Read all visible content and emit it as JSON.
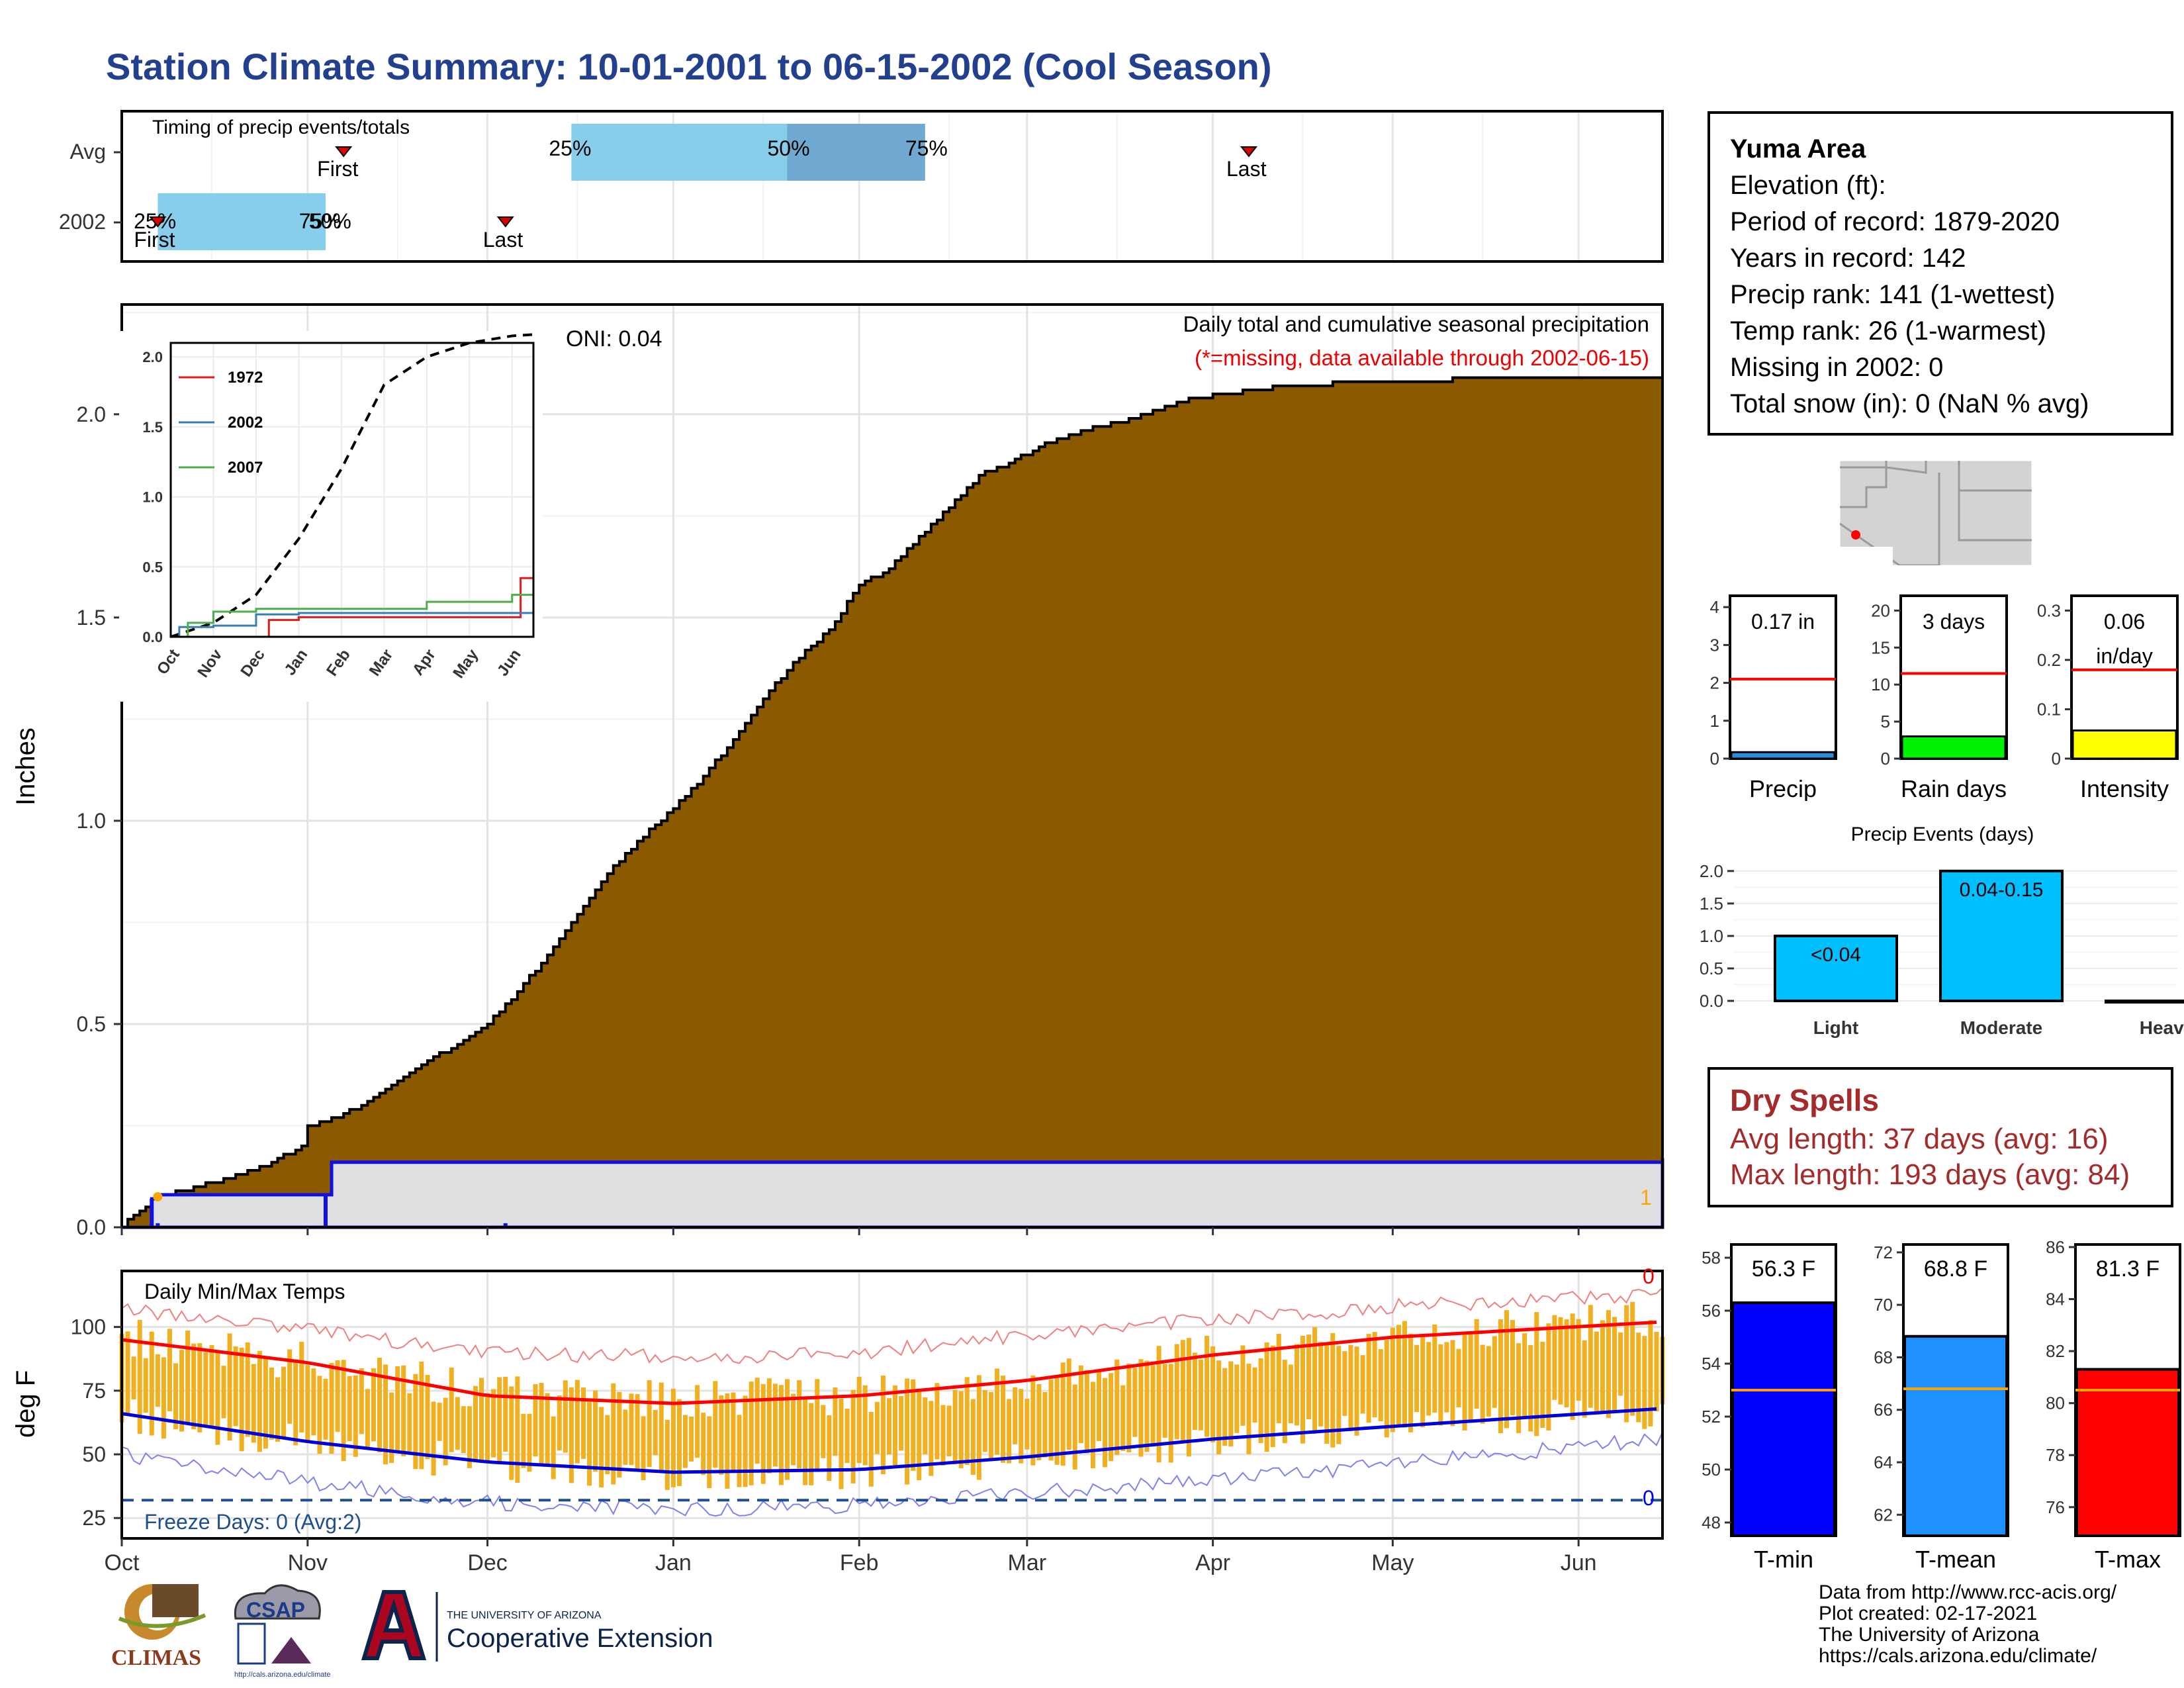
{
  "title": "Station Climate Summary: 10-01-2001 to 06-15-2002 (Cool Season)",
  "colors": {
    "title": "#23408e",
    "cumulative_fill": "#8b5a00",
    "current_fill": "#e0e0e2",
    "current_line": "#1010e0",
    "temp_bar": "#f0b020",
    "tmax_line": "#ff0000",
    "tmin_line": "#0000dd",
    "quartile_light": "#87ceeb",
    "quartile_dark": "#6fa8d0"
  },
  "timing": {
    "title": "Timing of precip events/totals",
    "rows": [
      "Avg",
      "2002"
    ],
    "avg": {
      "q25": "25%",
      "q50": "50%",
      "q75": "75%",
      "first": "First",
      "last": "Last"
    },
    "y2002": {
      "q25": "25%",
      "q50": "50%",
      "q75": "75%",
      "first": "First",
      "last": "Last"
    }
  },
  "info": {
    "station": "Yuma Area",
    "lines": [
      "Elevation (ft):",
      "Period of record: 1879-2020",
      "Years in record: 142",
      "Precip rank: 141 (1-wettest)",
      "Temp rank: 26 (1-warmest)",
      "Missing in 2002: 0",
      "Total snow (in): 0 (NaN % avg)"
    ]
  },
  "map": {
    "icon": "southwest-us-locator-map-icon"
  },
  "precip_panel": {
    "ylabel": "Inches",
    "oni": "ONI: 0.04",
    "subtitle": "Daily total and cumulative seasonal precipitation",
    "missing_note": "(*=missing, data available through 2002-06-15)",
    "missing_count": "1",
    "months": [
      "Oct",
      "Nov",
      "Dec",
      "Jan",
      "Feb",
      "Mar",
      "Apr",
      "May",
      "Jun"
    ]
  },
  "inset": {
    "legend": [
      {
        "name": "1972",
        "color": "#e41a1c"
      },
      {
        "name": "2002",
        "color": "#377eb8"
      },
      {
        "name": "2007",
        "color": "#4daf4a"
      }
    ]
  },
  "temp_panel": {
    "title": "Daily Min/Max Temps",
    "ylabel": "deg F",
    "freeze": "Freeze Days: 0 (Avg:2)",
    "record_high_count": "0",
    "record_low_count": "0"
  },
  "small_bars": [
    {
      "label": "Precip",
      "value_text": "0.17 in",
      "value": 0.17,
      "avg": 2.1,
      "ymax": 4.3,
      "ticks": [
        0,
        1,
        2,
        3,
        4
      ],
      "color": "#2a8ee0"
    },
    {
      "label": "Rain days",
      "value_text": "3 days",
      "value": 3,
      "avg": 11.5,
      "ymax": 22,
      "ticks": [
        0,
        5,
        10,
        15,
        20
      ],
      "color": "#00ee00"
    },
    {
      "label": "Intensity",
      "value_text": "0.06\nin/day",
      "value": 0.057,
      "avg": 0.18,
      "ymax": 0.33,
      "ticks": [
        0.0,
        0.1,
        0.2,
        0.3
      ],
      "color": "#ffff00"
    }
  ],
  "events": {
    "title": "Precip Events (days)",
    "categories": [
      "Light",
      "Moderate",
      "Heavy"
    ],
    "values": [
      1,
      2,
      0
    ],
    "labels": [
      "<0.04",
      "0.04-0.15",
      ""
    ],
    "ticks": [
      "0.0",
      "0.5",
      "1.0",
      "1.5",
      "2.0"
    ]
  },
  "dry_spells": {
    "title": "Dry Spells",
    "avg_length": "Avg length: 37 days (avg: 16)",
    "max_length": "Max length: 193 days (avg: 84)"
  },
  "temp_bars": [
    {
      "label": "T-min",
      "value_text": "56.3 F",
      "value": 56.3,
      "avg": 53.0,
      "ymin": 47.5,
      "ymax": 58.5,
      "ticks": [
        48,
        50,
        52,
        54,
        56,
        58
      ],
      "color": "#0000ff"
    },
    {
      "label": "T-mean",
      "value_text": "68.8 F",
      "value": 68.8,
      "avg": 66.8,
      "ymin": 61.2,
      "ymax": 72.3,
      "ticks": [
        62,
        64,
        66,
        68,
        70,
        72
      ],
      "color": "#1e90ff"
    },
    {
      "label": "T-max",
      "value_text": "81.3 F",
      "value": 81.3,
      "avg": 80.5,
      "ymin": 74.9,
      "ymax": 86.1,
      "ticks": [
        76,
        78,
        80,
        82,
        84,
        86
      ],
      "color": "#ff0000"
    }
  ],
  "logos": {
    "climas": "CLIMAS",
    "csap": "CSAP",
    "csap_url": "http://cals.arizona.edu/climate",
    "ua_small": "THE UNIVERSITY OF ARIZONA",
    "ua_big": "Cooperative Extension"
  },
  "credits": [
    "Data from http://www.rcc-acis.org/",
    "Plot created: 02-17-2021",
    "The University of Arizona",
    "https://cals.arizona.edu/climate/"
  ],
  "chart_data": [
    {
      "type": "area",
      "title": "Daily total and cumulative seasonal precipitation",
      "ylabel": "Inches",
      "ylim": [
        0,
        2.27
      ],
      "x_range_days": [
        0,
        257
      ],
      "series": [
        {
          "name": "",
          "kind": "cumulative average precipitation",
          "x": [
            0,
            2,
            4,
            5,
            7,
            10,
            15,
            20,
            25,
            30,
            31,
            36,
            41,
            46,
            51,
            56,
            61,
            66,
            71,
            76,
            81,
            86,
            92,
            97,
            102,
            107,
            112,
            118,
            123,
            128,
            133,
            138,
            143,
            148,
            153,
            158,
            163,
            169,
            174,
            179,
            184,
            189,
            194,
            199,
            204,
            209,
            214,
            219,
            224,
            230,
            235,
            240,
            245,
            250,
            255,
            257
          ],
          "y": [
            0,
            0.03,
            0.05,
            0.07,
            0.08,
            0.09,
            0.11,
            0.13,
            0.16,
            0.2,
            0.25,
            0.27,
            0.31,
            0.36,
            0.41,
            0.45,
            0.5,
            0.58,
            0.67,
            0.77,
            0.87,
            0.95,
            1.03,
            1.11,
            1.2,
            1.3,
            1.39,
            1.47,
            1.58,
            1.62,
            1.7,
            1.77,
            1.85,
            1.88,
            1.92,
            1.95,
            1.97,
            1.99,
            2.02,
            2.04,
            2.05,
            2.06,
            2.07,
            2.07,
            2.08,
            2.08,
            2.08,
            2.08,
            2.09,
            2.09,
            2.09,
            2.09,
            2.09,
            2.09,
            2.09,
            2.09
          ]
        },
        {
          "name": "2002",
          "kind": "cumulative observed precipitation",
          "x": [
            0,
            5,
            6,
            34,
            35,
            257
          ],
          "y": [
            0,
            0.07,
            0.08,
            0.08,
            0.16,
            0.17
          ]
        }
      ],
      "oni": 0.04
    },
    {
      "type": "line",
      "title": "Daily Min/Max Temps",
      "ylabel": "deg F",
      "ylim": [
        17,
        122
      ],
      "x_months": [
        "Oct",
        "Nov",
        "Dec",
        "Jan",
        "Feb",
        "Mar",
        "Apr",
        "May",
        "Jun"
      ],
      "series": [
        {
          "name": "",
          "kind": "average max",
          "x": [
            0,
            31,
            61,
            92,
            123,
            151,
            182,
            212,
            257
          ],
          "y": [
            95,
            86,
            73,
            70,
            73,
            79,
            89,
            96,
            102
          ]
        },
        {
          "name": "",
          "kind": "average min",
          "x": [
            0,
            31,
            61,
            92,
            123,
            151,
            182,
            212,
            257
          ],
          "y": [
            66,
            55,
            47,
            43,
            44,
            49,
            56,
            61,
            68
          ]
        },
        {
          "name": "",
          "kind": "record max",
          "x": [
            0,
            31,
            61,
            92,
            123,
            151,
            182,
            212,
            257
          ],
          "y": [
            107,
            99,
            90,
            88,
            90,
            97,
            103,
            108,
            113
          ]
        },
        {
          "name": "",
          "kind": "record min",
          "x": [
            0,
            31,
            61,
            92,
            123,
            151,
            182,
            212,
            257
          ],
          "y": [
            50,
            39,
            31,
            28,
            30,
            35,
            40,
            46,
            56
          ]
        }
      ],
      "freeze_line": 32,
      "freeze_days": 0,
      "freeze_days_avg": 2
    },
    {
      "type": "line",
      "title": "",
      "x_categories": [
        "Oct",
        "Nov",
        "Dec",
        "Jan",
        "Feb",
        "Mar",
        "Apr",
        "May",
        "Jun"
      ],
      "ylim": [
        0,
        2.1
      ],
      "series": [
        {
          "name": "",
          "kind": "average cumulative",
          "x": [
            0,
            1,
            2,
            3,
            4,
            5,
            6,
            7,
            8,
            8.5
          ],
          "y": [
            0,
            0.1,
            0.3,
            0.7,
            1.2,
            1.8,
            2.0,
            2.1,
            2.15,
            2.16
          ]
        },
        {
          "name": "1972",
          "x": [
            0,
            1,
            2,
            2.3,
            3,
            4,
            5,
            6,
            7,
            8,
            8.2,
            8.5
          ],
          "y": [
            0,
            0,
            0,
            0.12,
            0.14,
            0.14,
            0.14,
            0.14,
            0.14,
            0.14,
            0.42,
            0.42
          ]
        },
        {
          "name": "2002",
          "x": [
            0,
            0.2,
            1,
            2,
            3,
            4,
            5,
            6,
            7,
            8,
            8.5
          ],
          "y": [
            0,
            0.07,
            0.08,
            0.16,
            0.17,
            0.17,
            0.17,
            0.17,
            0.17,
            0.17,
            0.17
          ]
        },
        {
          "name": "2007",
          "x": [
            0,
            0.4,
            1,
            2,
            3,
            4,
            5,
            6,
            7,
            8,
            8.5
          ],
          "y": [
            0,
            0.1,
            0.18,
            0.2,
            0.2,
            0.2,
            0.2,
            0.25,
            0.25,
            0.3,
            0.3
          ]
        }
      ]
    },
    {
      "type": "bar",
      "categories": [
        "Precip",
        "Rain days",
        "Intensity"
      ],
      "values": [
        0.17,
        3,
        0.06
      ],
      "averages": [
        2.1,
        11.5,
        0.18
      ]
    },
    {
      "type": "bar",
      "title": "Precip Events (days)",
      "categories": [
        "Light",
        "Moderate",
        "Heavy"
      ],
      "values": [
        1,
        2,
        0
      ],
      "ylim": [
        0,
        2.1
      ]
    },
    {
      "type": "bar",
      "categories": [
        "T-min",
        "T-mean",
        "T-max"
      ],
      "values": [
        56.3,
        68.8,
        81.3
      ],
      "averages": [
        53.0,
        66.8,
        80.5
      ]
    }
  ]
}
